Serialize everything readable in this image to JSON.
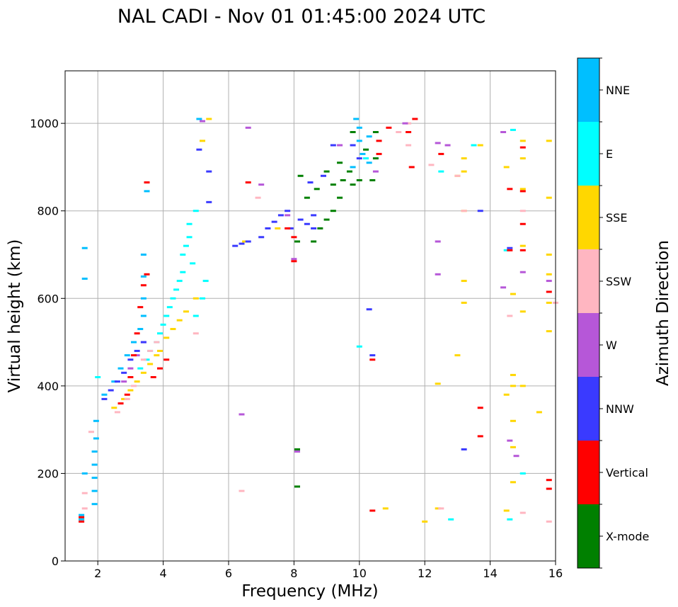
{
  "chart_data": {
    "type": "scatter",
    "title": "NAL CADI - Nov 01 01:45:00 2024 UTC",
    "xlabel": "Frequency (MHz)",
    "ylabel": "Virtual height (km)",
    "xlim": [
      1,
      16
    ],
    "ylim": [
      0,
      1120
    ],
    "x_ticks": [
      2,
      4,
      6,
      8,
      10,
      12,
      14,
      16
    ],
    "y_ticks": [
      0,
      200,
      400,
      600,
      800,
      1000
    ],
    "grid": true,
    "colorbar": {
      "label": "Azimuth Direction",
      "categories": [
        {
          "name": "X-mode",
          "color": "#008000"
        },
        {
          "name": "Vertical",
          "color": "#ff0000"
        },
        {
          "name": "NNW",
          "color": "#3a3aff"
        },
        {
          "name": "W",
          "color": "#b657d8"
        },
        {
          "name": "SSW",
          "color": "#ffb6c1"
        },
        {
          "name": "SSE",
          "color": "#ffd700"
        },
        {
          "name": "E",
          "color": "#00ffff"
        },
        {
          "name": "NNE",
          "color": "#00bfff"
        }
      ]
    },
    "series": [
      {
        "name": "NNE",
        "points": [
          [
            1.5,
            95
          ],
          [
            1.5,
            105
          ],
          [
            1.6,
            200
          ],
          [
            1.6,
            645
          ],
          [
            1.6,
            715
          ],
          [
            1.9,
            130
          ],
          [
            1.9,
            160
          ],
          [
            1.9,
            190
          ],
          [
            1.9,
            220
          ],
          [
            1.9,
            250
          ],
          [
            1.95,
            280
          ],
          [
            1.95,
            320
          ],
          [
            2.2,
            380
          ],
          [
            2.5,
            410
          ],
          [
            2.7,
            440
          ],
          [
            2.9,
            470
          ],
          [
            3.1,
            500
          ],
          [
            3.3,
            530
          ],
          [
            3.4,
            560
          ],
          [
            3.4,
            600
          ],
          [
            3.4,
            650
          ],
          [
            3.4,
            700
          ],
          [
            3.5,
            845
          ],
          [
            5.1,
            1010
          ],
          [
            9.9,
            1010
          ],
          [
            10.0,
            990
          ],
          [
            10.0,
            960
          ],
          [
            10.1,
            930
          ],
          [
            9.8,
            900
          ],
          [
            10.3,
            910
          ],
          [
            10.3,
            970
          ]
        ]
      },
      {
        "name": "E",
        "points": [
          [
            3.3,
            440
          ],
          [
            3.5,
            460
          ],
          [
            3.6,
            480
          ],
          [
            3.8,
            500
          ],
          [
            3.9,
            520
          ],
          [
            4.0,
            540
          ],
          [
            4.1,
            560
          ],
          [
            4.2,
            580
          ],
          [
            4.3,
            600
          ],
          [
            4.4,
            620
          ],
          [
            4.5,
            640
          ],
          [
            4.6,
            660
          ],
          [
            4.6,
            700
          ],
          [
            4.7,
            720
          ],
          [
            4.8,
            740
          ],
          [
            4.8,
            770
          ],
          [
            5.0,
            560
          ],
          [
            5.2,
            600
          ],
          [
            5.3,
            640
          ],
          [
            4.9,
            680
          ],
          [
            5.0,
            800
          ],
          [
            2.0,
            420
          ],
          [
            10.0,
            490
          ],
          [
            10.2,
            920
          ],
          [
            12.5,
            890
          ],
          [
            14.5,
            710
          ],
          [
            14.6,
            95
          ],
          [
            12.8,
            95
          ],
          [
            15.0,
            200
          ],
          [
            14.7,
            985
          ],
          [
            13.5,
            950
          ]
        ]
      },
      {
        "name": "SSE",
        "points": [
          [
            2.5,
            350
          ],
          [
            2.8,
            370
          ],
          [
            3.0,
            390
          ],
          [
            3.2,
            410
          ],
          [
            3.4,
            430
          ],
          [
            3.6,
            450
          ],
          [
            3.8,
            470
          ],
          [
            3.9,
            480
          ],
          [
            4.1,
            510
          ],
          [
            4.3,
            530
          ],
          [
            4.5,
            550
          ],
          [
            4.7,
            570
          ],
          [
            5.0,
            600
          ],
          [
            5.4,
            1010
          ],
          [
            5.2,
            960
          ],
          [
            6.5,
            730
          ],
          [
            7.5,
            760
          ],
          [
            12.0,
            90
          ],
          [
            12.4,
            120
          ],
          [
            12.4,
            405
          ],
          [
            13.0,
            470
          ],
          [
            13.2,
            590
          ],
          [
            13.2,
            640
          ],
          [
            13.2,
            800
          ],
          [
            13.2,
            890
          ],
          [
            13.2,
            920
          ],
          [
            13.0,
            880
          ],
          [
            13.7,
            950
          ],
          [
            14.5,
            115
          ],
          [
            14.5,
            380
          ],
          [
            14.7,
            180
          ],
          [
            14.7,
            260
          ],
          [
            14.7,
            320
          ],
          [
            14.7,
            400
          ],
          [
            14.7,
            425
          ],
          [
            14.7,
            610
          ],
          [
            15.0,
            400
          ],
          [
            15.0,
            570
          ],
          [
            15.0,
            720
          ],
          [
            15.0,
            850
          ],
          [
            15.0,
            920
          ],
          [
            15.0,
            960
          ],
          [
            15.5,
            340
          ],
          [
            15.8,
            525
          ],
          [
            15.8,
            590
          ],
          [
            15.8,
            655
          ],
          [
            15.8,
            700
          ],
          [
            15.8,
            830
          ],
          [
            15.8,
            960
          ],
          [
            10.8,
            120
          ],
          [
            14.5,
            900
          ]
        ]
      },
      {
        "name": "SSW",
        "points": [
          [
            1.6,
            120
          ],
          [
            1.6,
            155
          ],
          [
            1.8,
            295
          ],
          [
            2.6,
            340
          ],
          [
            2.9,
            370
          ],
          [
            3.1,
            400
          ],
          [
            3.4,
            460
          ],
          [
            3.6,
            480
          ],
          [
            3.8,
            500
          ],
          [
            5.0,
            520
          ],
          [
            6.4,
            160
          ],
          [
            6.9,
            830
          ],
          [
            11.2,
            980
          ],
          [
            11.5,
            950
          ],
          [
            11.5,
            1000
          ],
          [
            12.2,
            905
          ],
          [
            12.5,
            120
          ],
          [
            13.0,
            880
          ],
          [
            13.2,
            800
          ],
          [
            14.6,
            560
          ],
          [
            15.0,
            110
          ],
          [
            15.0,
            800
          ],
          [
            15.8,
            90
          ],
          [
            16.0,
            590
          ]
        ]
      },
      {
        "name": "W",
        "points": [
          [
            2.8,
            410
          ],
          [
            3.0,
            440
          ],
          [
            3.2,
            470
          ],
          [
            3.4,
            500
          ],
          [
            5.2,
            1005
          ],
          [
            6.4,
            335
          ],
          [
            6.6,
            990
          ],
          [
            7.0,
            860
          ],
          [
            7.8,
            790
          ],
          [
            8.0,
            690
          ],
          [
            8.1,
            250
          ],
          [
            9.4,
            950
          ],
          [
            10.5,
            890
          ],
          [
            11.4,
            1000
          ],
          [
            12.4,
            730
          ],
          [
            12.4,
            655
          ],
          [
            12.4,
            955
          ],
          [
            12.7,
            950
          ],
          [
            14.4,
            625
          ],
          [
            14.4,
            980
          ],
          [
            14.6,
            275
          ],
          [
            14.8,
            240
          ],
          [
            15.0,
            660
          ],
          [
            15.8,
            640
          ]
        ]
      },
      {
        "name": "NNW",
        "points": [
          [
            2.2,
            370
          ],
          [
            2.4,
            390
          ],
          [
            2.6,
            410
          ],
          [
            2.8,
            430
          ],
          [
            3.0,
            460
          ],
          [
            3.2,
            480
          ],
          [
            3.4,
            500
          ],
          [
            5.1,
            940
          ],
          [
            5.4,
            820
          ],
          [
            5.4,
            890
          ],
          [
            6.2,
            720
          ],
          [
            6.4,
            725
          ],
          [
            6.6,
            730
          ],
          [
            7.0,
            740
          ],
          [
            7.2,
            760
          ],
          [
            7.4,
            775
          ],
          [
            7.6,
            790
          ],
          [
            7.8,
            800
          ],
          [
            7.9,
            760
          ],
          [
            8.2,
            780
          ],
          [
            8.4,
            770
          ],
          [
            8.6,
            760
          ],
          [
            8.6,
            790
          ],
          [
            8.5,
            865
          ],
          [
            8.9,
            880
          ],
          [
            9.2,
            950
          ],
          [
            9.8,
            950
          ],
          [
            10.0,
            920
          ],
          [
            10.3,
            575
          ],
          [
            10.4,
            470
          ],
          [
            13.2,
            255
          ],
          [
            13.7,
            800
          ],
          [
            14.6,
            715
          ]
        ]
      },
      {
        "name": "Vertical",
        "points": [
          [
            1.5,
            90
          ],
          [
            1.5,
            100
          ],
          [
            2.7,
            360
          ],
          [
            2.9,
            380
          ],
          [
            3.0,
            420
          ],
          [
            3.1,
            470
          ],
          [
            3.2,
            520
          ],
          [
            3.3,
            580
          ],
          [
            3.4,
            630
          ],
          [
            3.5,
            655
          ],
          [
            3.5,
            865
          ],
          [
            3.7,
            420
          ],
          [
            3.9,
            440
          ],
          [
            4.1,
            460
          ],
          [
            6.6,
            865
          ],
          [
            7.8,
            760
          ],
          [
            8.0,
            685
          ],
          [
            8.0,
            740
          ],
          [
            10.4,
            115
          ],
          [
            10.4,
            460
          ],
          [
            10.6,
            930
          ],
          [
            10.6,
            960
          ],
          [
            10.9,
            990
          ],
          [
            11.5,
            980
          ],
          [
            11.6,
            900
          ],
          [
            11.7,
            1010
          ],
          [
            12.5,
            930
          ],
          [
            13.7,
            285
          ],
          [
            13.7,
            350
          ],
          [
            14.6,
            710
          ],
          [
            14.6,
            850
          ],
          [
            15.0,
            710
          ],
          [
            15.0,
            770
          ],
          [
            15.0,
            845
          ],
          [
            15.0,
            945
          ],
          [
            15.8,
            165
          ],
          [
            15.8,
            185
          ],
          [
            15.8,
            615
          ]
        ]
      },
      {
        "name": "X-mode",
        "points": [
          [
            8.1,
            170
          ],
          [
            8.1,
            255
          ],
          [
            8.1,
            730
          ],
          [
            8.2,
            880
          ],
          [
            8.4,
            830
          ],
          [
            8.6,
            730
          ],
          [
            8.7,
            850
          ],
          [
            8.8,
            760
          ],
          [
            9.0,
            780
          ],
          [
            9.0,
            890
          ],
          [
            9.2,
            800
          ],
          [
            9.2,
            860
          ],
          [
            9.4,
            830
          ],
          [
            9.4,
            910
          ],
          [
            9.5,
            870
          ],
          [
            9.7,
            890
          ],
          [
            9.8,
            860
          ],
          [
            9.8,
            980
          ],
          [
            10.0,
            870
          ],
          [
            10.2,
            940
          ],
          [
            10.4,
            870
          ],
          [
            10.5,
            980
          ],
          [
            10.5,
            920
          ]
        ]
      }
    ]
  }
}
